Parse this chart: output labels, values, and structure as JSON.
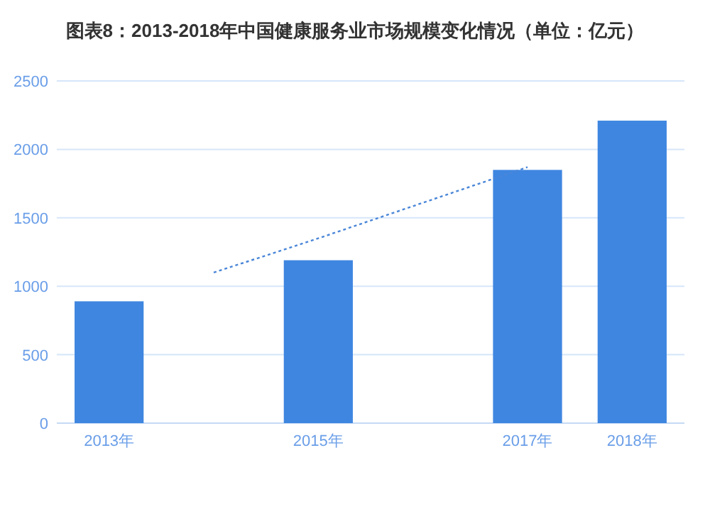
{
  "chart_data": {
    "type": "bar",
    "title": "图表8：2013-2018年中国健康服务业市场规模变化情况（单位：亿元）",
    "categories": [
      "2013年",
      null,
      "2015年",
      null,
      "2017年",
      "2018年"
    ],
    "series": [
      {
        "color": "#3f86e0",
        "values": [
          890,
          null,
          1190,
          null,
          1850,
          2210
        ]
      },
      {
        "type": "line",
        "color": "#4a86d8",
        "line_style": "dotted",
        "values": [
          null,
          1100,
          1350,
          1610,
          1870,
          null
        ]
      }
    ],
    "ylim": [
      0,
      2500
    ],
    "yticks": [
      0,
      500,
      1000,
      1500,
      2000,
      2500
    ],
    "grid": "y"
  }
}
